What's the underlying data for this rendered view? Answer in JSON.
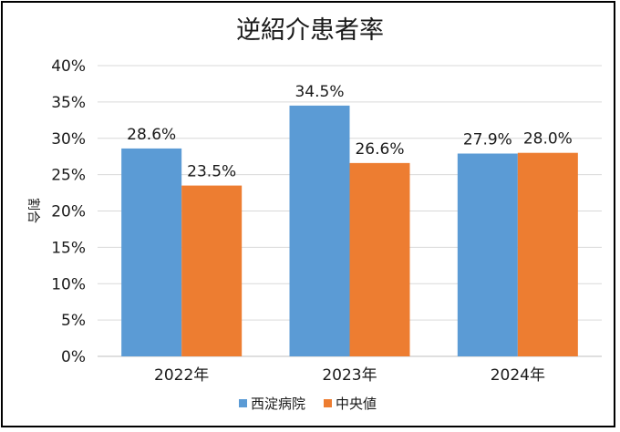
{
  "chart_data": {
    "type": "bar",
    "title": "逆紹介患者率",
    "ylabel": "割合",
    "xlabel": "",
    "categories": [
      "2022年",
      "2023年",
      "2024年"
    ],
    "series": [
      {
        "name": "西淀病院",
        "values": [
          28.6,
          34.5,
          27.9
        ],
        "labels": [
          "28.6%",
          "34.5%",
          "27.9%"
        ],
        "color": "#5b9bd5"
      },
      {
        "name": "中央値",
        "values": [
          23.5,
          26.6,
          28.0
        ],
        "labels": [
          "23.5%",
          "26.6%",
          "28.0%"
        ],
        "color": "#ed7d31"
      }
    ],
    "ylim": [
      0,
      40
    ],
    "yticks": [
      "0%",
      "5%",
      "10%",
      "15%",
      "20%",
      "25%",
      "30%",
      "35%",
      "40%"
    ],
    "grid": true,
    "legend_position": "bottom"
  }
}
